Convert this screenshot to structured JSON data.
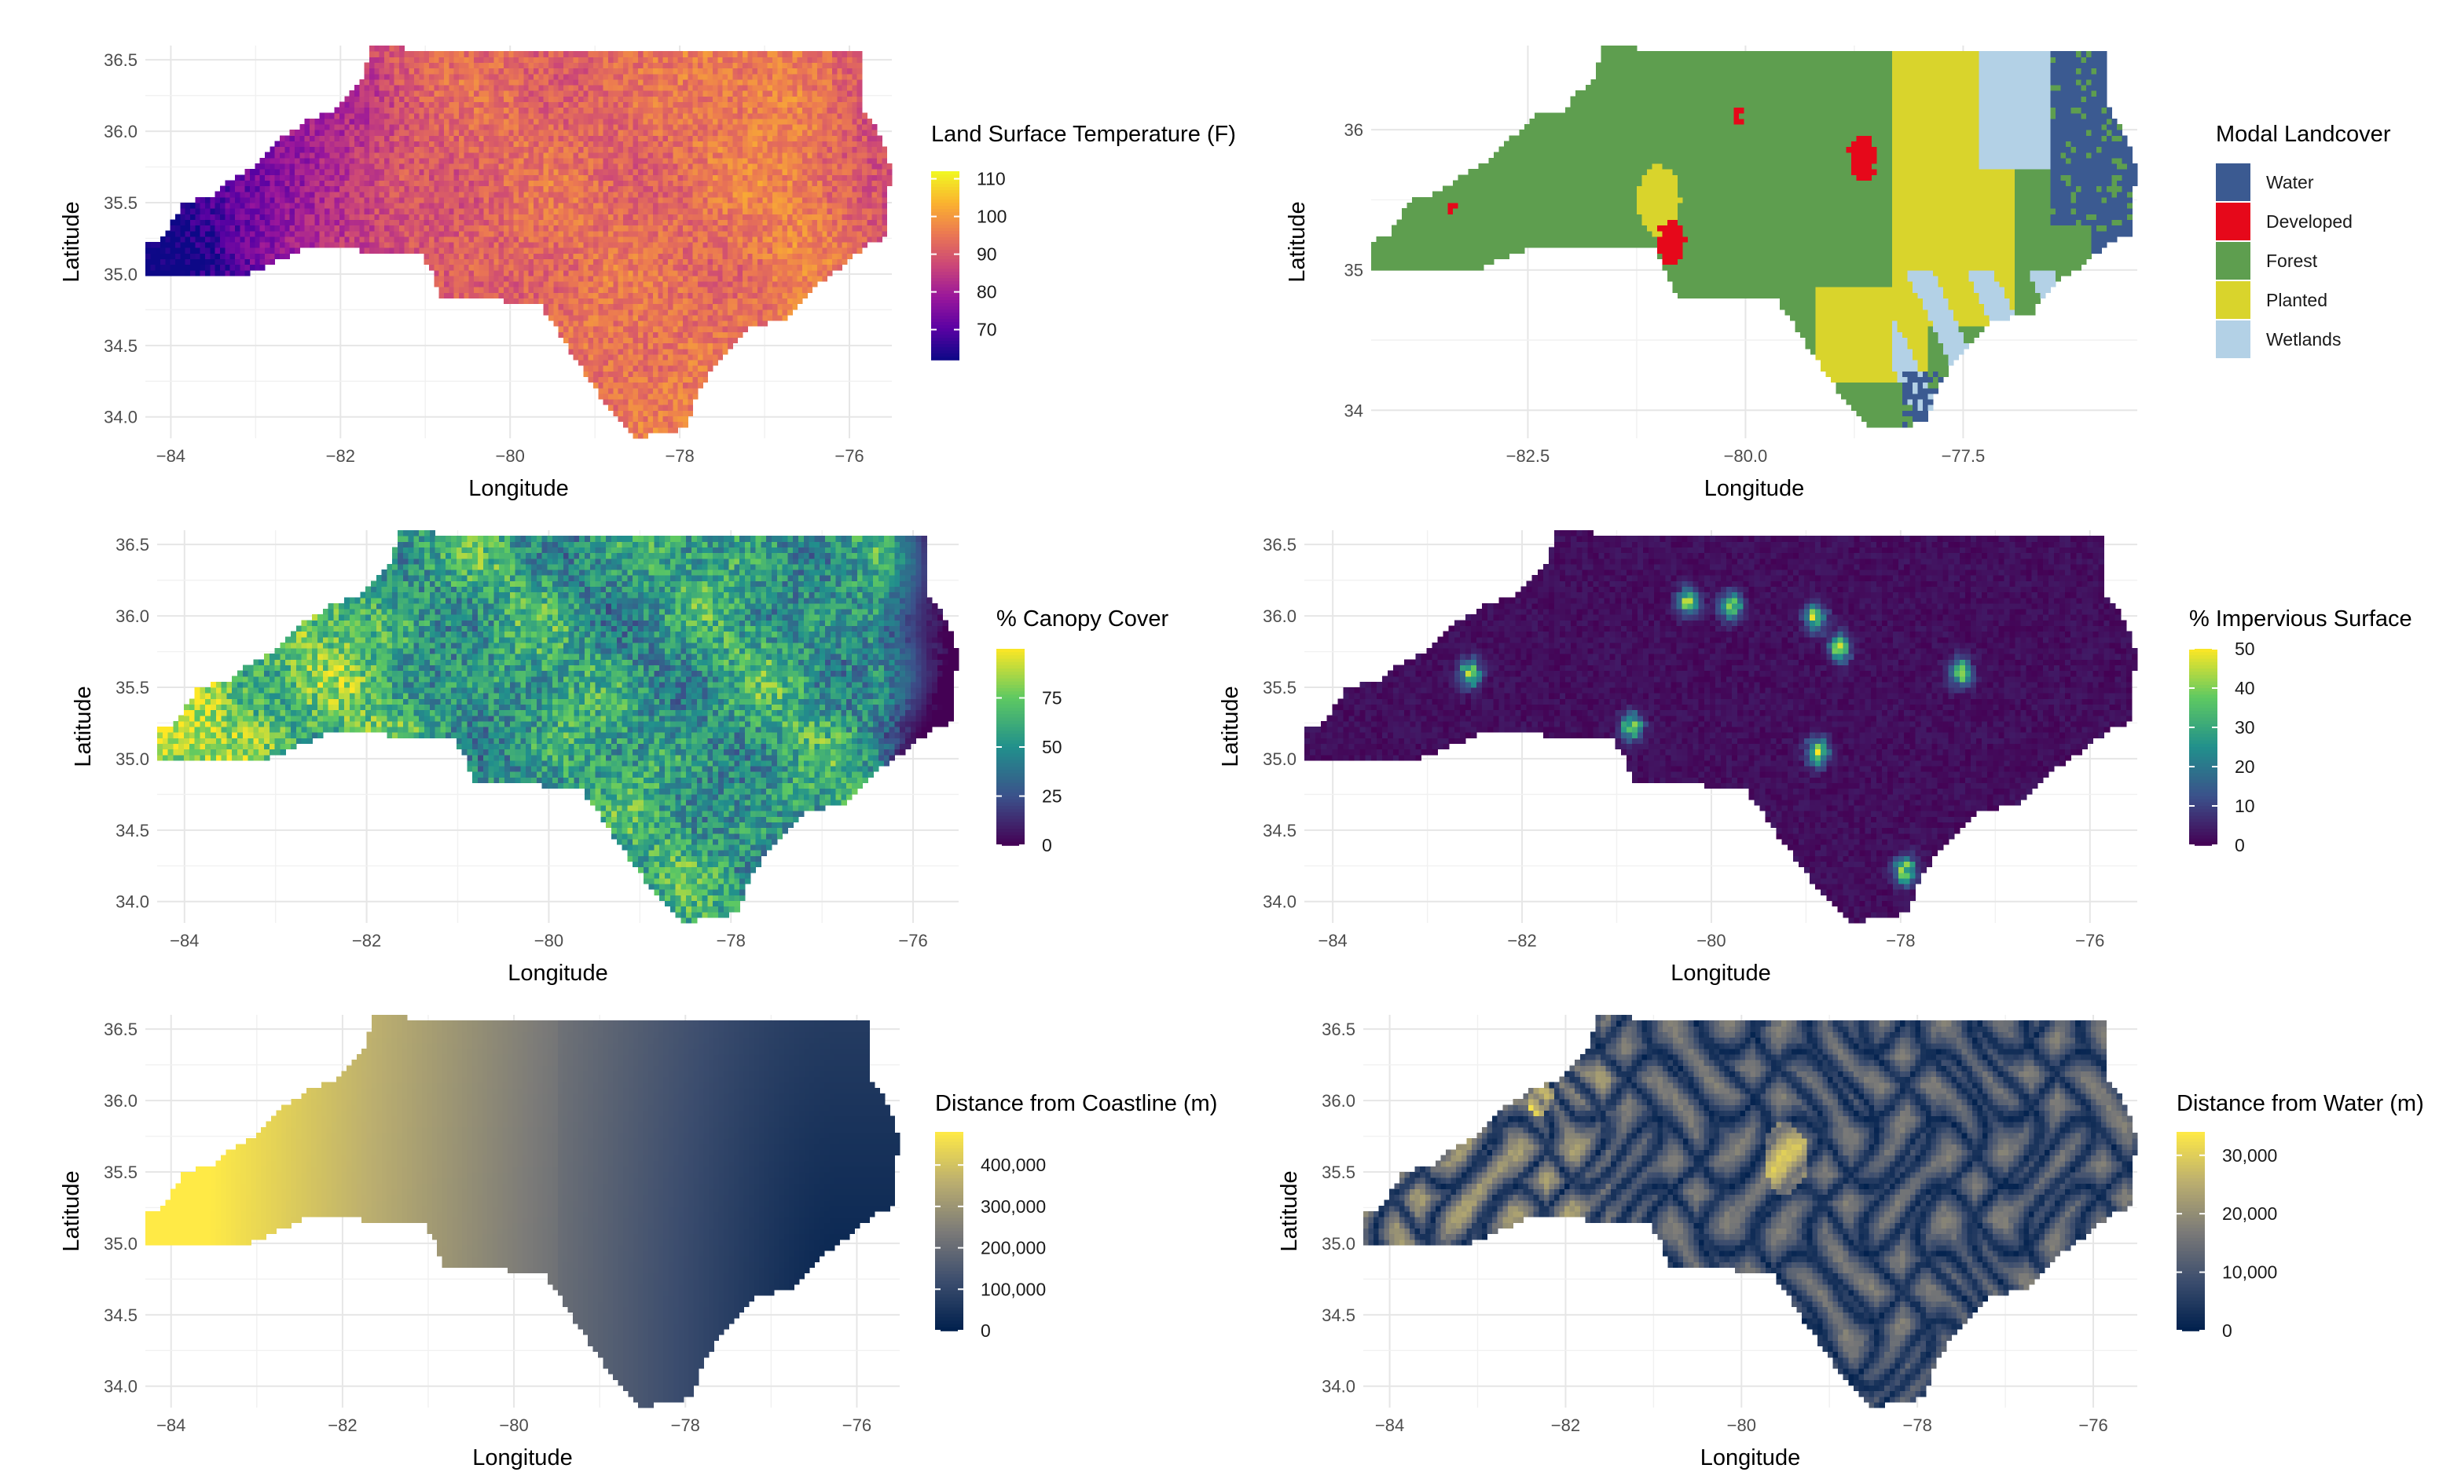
{
  "chart_data": [
    {
      "type": "heatmap",
      "title": "",
      "xlabel": "Longitude",
      "ylabel": "Latitude",
      "xlim": [
        -84.3,
        -75.5
      ],
      "ylim": [
        33.85,
        36.6
      ],
      "x_ticks": [
        -84,
        -82,
        -80,
        -78,
        -76
      ],
      "x_tick_labels": [
        "−84",
        "−82",
        "−80",
        "−78",
        "−76"
      ],
      "y_ticks": [
        34.0,
        34.5,
        35.0,
        35.5,
        36.0,
        36.5
      ],
      "y_tick_labels": [
        "34.0",
        "34.5",
        "35.0",
        "35.5",
        "36.0",
        "36.5"
      ],
      "legend": {
        "title": "Land Surface Temperature (F)",
        "kind": "continuous",
        "range": [
          62,
          112
        ],
        "breaks": [
          70,
          80,
          90,
          100,
          110
        ],
        "labels": [
          "70",
          "80",
          "90",
          "100",
          "110"
        ],
        "colors": [
          "#0d0887",
          "#5b02a3",
          "#9a179b",
          "#cb4678",
          "#eb7852",
          "#fbb32f",
          "#f0f921"
        ]
      },
      "field": "temperature"
    },
    {
      "type": "heatmap",
      "title": "",
      "xlabel": "Longitude",
      "ylabel": "Latitude",
      "xlim": [
        -84.3,
        -75.5
      ],
      "ylim": [
        33.8,
        36.6
      ],
      "x_ticks": [
        -82.5,
        -80.0,
        -77.5
      ],
      "x_tick_labels": [
        "−82.5",
        "−80.0",
        "−77.5"
      ],
      "y_ticks": [
        34,
        35,
        36
      ],
      "y_tick_labels": [
        "34",
        "35",
        "36"
      ],
      "legend": {
        "title": "Modal Landcover",
        "kind": "discrete",
        "items": [
          {
            "label": "Water",
            "color": "#3b5a91"
          },
          {
            "label": "Developed",
            "color": "#e6081a"
          },
          {
            "label": "Forest",
            "color": "#5e9e4f"
          },
          {
            "label": "Planted",
            "color": "#d9d42c"
          },
          {
            "label": "Wetlands",
            "color": "#b3d1e6"
          }
        ]
      },
      "field": "landcover"
    },
    {
      "type": "heatmap",
      "title": "",
      "xlabel": "Longitude",
      "ylabel": "Latitude",
      "xlim": [
        -84.3,
        -75.5
      ],
      "ylim": [
        33.85,
        36.6
      ],
      "x_ticks": [
        -84,
        -82,
        -80,
        -78,
        -76
      ],
      "x_tick_labels": [
        "−84",
        "−82",
        "−80",
        "−78",
        "−76"
      ],
      "y_ticks": [
        34.0,
        34.5,
        35.0,
        35.5,
        36.0,
        36.5
      ],
      "y_tick_labels": [
        "34.0",
        "34.5",
        "35.0",
        "35.5",
        "36.0",
        "36.5"
      ],
      "legend": {
        "title": "% Canopy Cover",
        "kind": "continuous",
        "range": [
          0,
          100
        ],
        "breaks": [
          0,
          25,
          50,
          75
        ],
        "labels": [
          "0",
          "25",
          "50",
          "75"
        ],
        "colors": [
          "#440154",
          "#3b528b",
          "#21908c",
          "#5ec962",
          "#fde725"
        ]
      },
      "field": "canopy"
    },
    {
      "type": "heatmap",
      "title": "",
      "xlabel": "Longitude",
      "ylabel": "Latitude",
      "xlim": [
        -84.3,
        -75.5
      ],
      "ylim": [
        33.85,
        36.6
      ],
      "x_ticks": [
        -84,
        -82,
        -80,
        -78,
        -76
      ],
      "x_tick_labels": [
        "−84",
        "−82",
        "−80",
        "−78",
        "−76"
      ],
      "y_ticks": [
        34.0,
        34.5,
        35.0,
        35.5,
        36.0,
        36.5
      ],
      "y_tick_labels": [
        "34.0",
        "34.5",
        "35.0",
        "35.5",
        "36.0",
        "36.5"
      ],
      "legend": {
        "title": "% Impervious Surface",
        "kind": "continuous",
        "range": [
          0,
          50
        ],
        "breaks": [
          0,
          10,
          20,
          30,
          40,
          50
        ],
        "labels": [
          "0",
          "10",
          "20",
          "30",
          "40",
          "50"
        ],
        "colors": [
          "#440154",
          "#3b528b",
          "#21908c",
          "#5ec962",
          "#fde725"
        ]
      },
      "field": "impervious"
    },
    {
      "type": "heatmap",
      "title": "",
      "xlabel": "Longitude",
      "ylabel": "Latitude",
      "xlim": [
        -84.3,
        -75.5
      ],
      "ylim": [
        33.85,
        36.6
      ],
      "x_ticks": [
        -84,
        -82,
        -80,
        -78,
        -76
      ],
      "x_tick_labels": [
        "−84",
        "−82",
        "−80",
        "−78",
        "−76"
      ],
      "y_ticks": [
        34.0,
        34.5,
        35.0,
        35.5,
        36.0,
        36.5
      ],
      "y_tick_labels": [
        "34.0",
        "34.5",
        "35.0",
        "35.5",
        "36.0",
        "36.5"
      ],
      "legend": {
        "title": "Distance from Coastline (m)",
        "kind": "continuous",
        "range": [
          0,
          480000
        ],
        "breaks": [
          0,
          100000,
          200000,
          300000,
          400000
        ],
        "labels": [
          "0",
          "100,000",
          "200,000",
          "300,000",
          "400,000"
        ],
        "colors": [
          "#00204d",
          "#3c4d6e",
          "#7c7b78",
          "#bcaf6f",
          "#ffea46"
        ]
      },
      "field": "coast"
    },
    {
      "type": "heatmap",
      "title": "",
      "xlabel": "Longitude",
      "ylabel": "Latitude",
      "xlim": [
        -84.3,
        -75.5
      ],
      "ylim": [
        33.85,
        36.6
      ],
      "x_ticks": [
        -84,
        -82,
        -80,
        -78,
        -76
      ],
      "x_tick_labels": [
        "−84",
        "−82",
        "−80",
        "−78",
        "−76"
      ],
      "y_ticks": [
        34.0,
        34.5,
        35.0,
        35.5,
        36.0,
        36.5
      ],
      "y_tick_labels": [
        "34.0",
        "34.5",
        "35.0",
        "35.5",
        "36.0",
        "36.5"
      ],
      "legend": {
        "title": "Distance from Water (m)",
        "kind": "continuous",
        "range": [
          0,
          34000
        ],
        "breaks": [
          0,
          10000,
          20000,
          30000
        ],
        "labels": [
          "0",
          "10,000",
          "20,000",
          "30,000"
        ],
        "colors": [
          "#00204d",
          "#3c4d6e",
          "#7c7b78",
          "#bcaf6f",
          "#ffea46"
        ]
      },
      "field": "water"
    }
  ]
}
